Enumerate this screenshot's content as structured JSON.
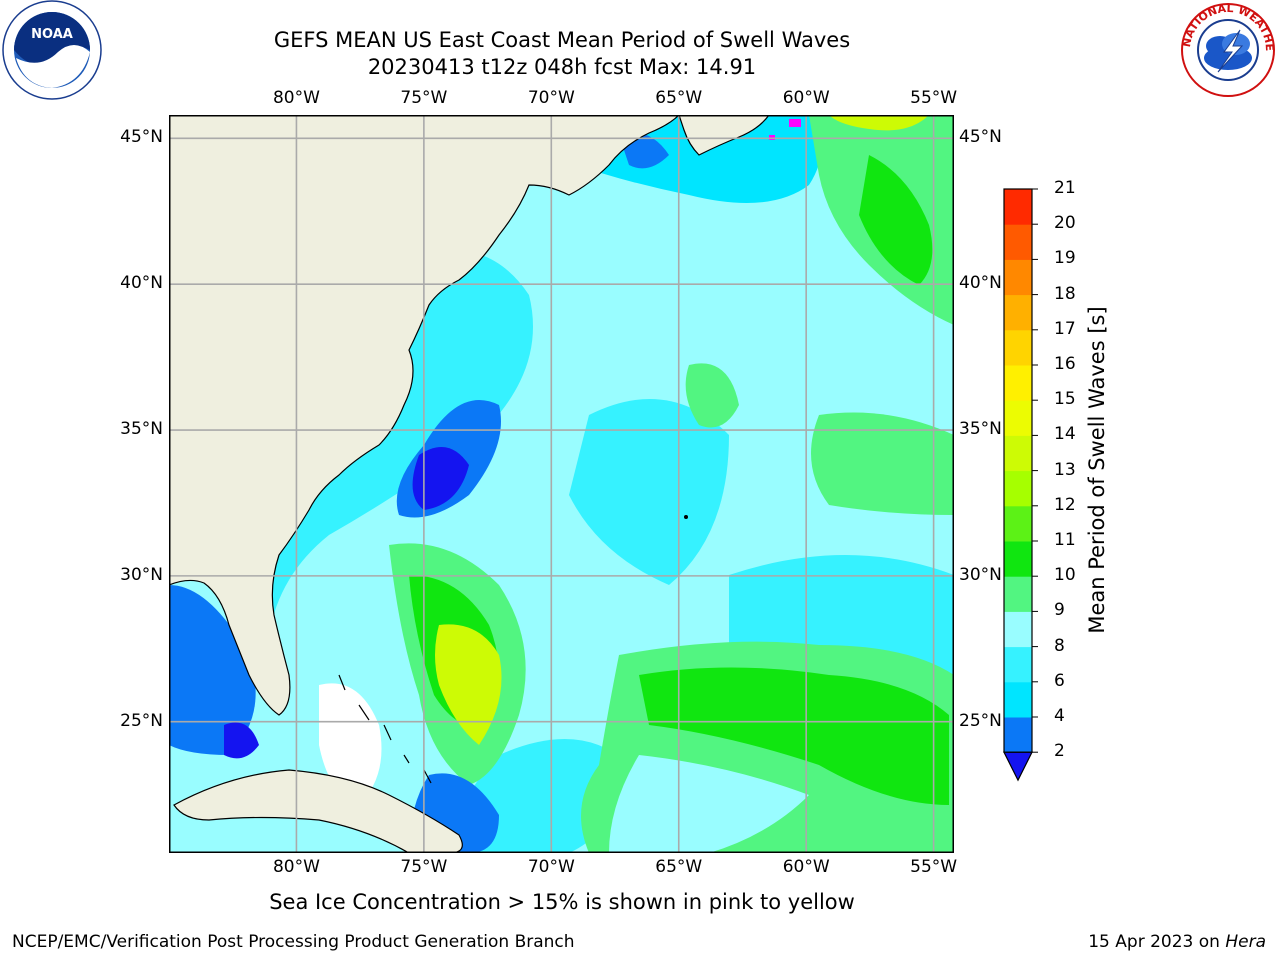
{
  "title": {
    "line1": "GEFS MEAN US East Coast Mean Period of Swell Waves",
    "line2": "20230413 t12z 048h fcst   Max: 14.91"
  },
  "logos": {
    "left": {
      "text": "NOAA",
      "icon": "noaa-logo-icon"
    },
    "right": {
      "text": "NATIONAL WEATHER SERVICE",
      "icon": "nws-logo-icon"
    }
  },
  "map": {
    "lon_labels": [
      "80°W",
      "75°W",
      "70°W",
      "65°W",
      "60°W",
      "55°W"
    ],
    "lat_labels": [
      "45°N",
      "40°N",
      "35°N",
      "30°N",
      "25°N"
    ],
    "lon_range": [
      -85,
      -54.2
    ],
    "lat_range": [
      20.5,
      45.8
    ]
  },
  "colorbar": {
    "title": "Mean Period of Swell Waves [s]",
    "ticks": [
      "2",
      "4",
      "6",
      "8",
      "9",
      "10",
      "11",
      "12",
      "13",
      "14",
      "15",
      "16",
      "17",
      "18",
      "19",
      "20",
      "21"
    ],
    "colors": [
      "#0b78f6",
      "#00e5ff",
      "#36f2ff",
      "#99fdff",
      "#52f581",
      "#10e610",
      "#5cf216",
      "#a6ff00",
      "#cdfb05",
      "#ecfc02",
      "#fff000",
      "#ffd400",
      "#ffb000",
      "#ff8800",
      "#ff5a00",
      "#ff2a00",
      "#ff0000"
    ],
    "extend_color": "#1414f0"
  },
  "footnote": "Sea Ice Concentration > 15% is shown in pink to yellow",
  "footer": {
    "left": "NCEP/EMC/Verification Post Processing Product Generation Branch",
    "right_date": "15 Apr 2023 on",
    "right_host": "Hera"
  }
}
